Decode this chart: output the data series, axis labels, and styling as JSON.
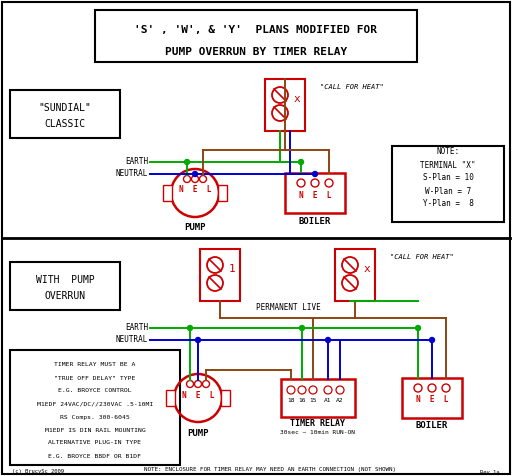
{
  "title_line1": "'S' , 'W', & 'Y'  PLANS MODIFIED FOR",
  "title_line2": "PUMP OVERRUN BY TIMER RELAY",
  "bg_color": "#ffffff",
  "red": "#cc0000",
  "green": "#00aa00",
  "blue": "#0000cc",
  "brown": "#8B4513",
  "black": "#000000",
  "sundial_label": [
    "\"SUNDIAL\"",
    "CLASSIC"
  ],
  "overrun_label": [
    "WITH  PUMP",
    "OVERRUN"
  ],
  "call_for_heat": "\"CALL FOR HEAT\"",
  "permanent_live": "PERMANENT LIVE",
  "earth": "EARTH",
  "neutral": "NEUTRAL",
  "note_lines": [
    "NOTE:",
    "TERMINAL \"X\"",
    "S-Plan = 10",
    "W-Plan = 7",
    "Y-Plan =  8"
  ],
  "timer_lines": [
    "TIMER RELAY MUST BE A",
    "\"TRUE OFF DELAY\" TYPE",
    "E.G. BROYCE CONTROL",
    "M1EDF 24VAC/DC//230VAC .5-10MI",
    "RS Comps. 300-6045",
    "M1EDF IS DIN RAIL MOUNTING",
    "ALTERNATIVE PLUG-IN TYPE",
    "E.G. BROYCE B8DF OR B1DF"
  ],
  "bottom_note": "NOTE: ENCLOSURE FOR TIMER RELAY MAY NEED AN EARTH CONNECTION (NOT SHOWN)",
  "copyright": "(c) BrucySc 2009",
  "revision": "Rev 1a"
}
